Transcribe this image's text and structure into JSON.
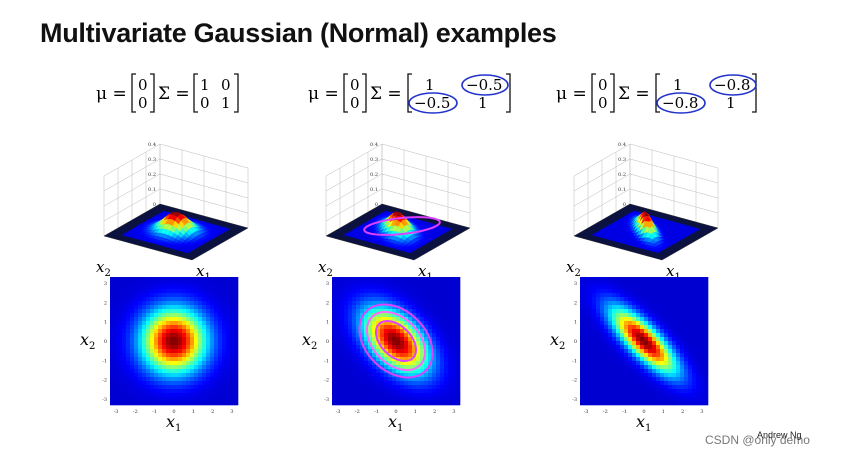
{
  "title": "Multivariate Gaussian (Normal) examples",
  "panels": [
    {
      "mu_symbol": "μ =",
      "mu": [
        "0",
        "0"
      ],
      "sigma_symbol": "Σ =",
      "sigma": [
        [
          "1",
          "0"
        ],
        [
          "0",
          "1"
        ]
      ],
      "circled_offdiag": false,
      "axis_x": "x",
      "axis_x_sub": "1",
      "axis_y": "x",
      "axis_y_sub": "2",
      "rho": 0.0
    },
    {
      "mu_symbol": "μ =",
      "mu": [
        "0",
        "0"
      ],
      "sigma_symbol": "Σ =",
      "sigma": [
        [
          "1",
          "−0.5"
        ],
        [
          "−0.5",
          "1"
        ]
      ],
      "circled_offdiag": true,
      "axis_x": "x",
      "axis_x_sub": "1",
      "axis_y": "x",
      "axis_y_sub": "2",
      "rho": -0.5
    },
    {
      "mu_symbol": "μ =",
      "mu": [
        "0",
        "0"
      ],
      "sigma_symbol": "Σ =",
      "sigma": [
        [
          "1",
          "−0.8"
        ],
        [
          "−0.8",
          "1"
        ]
      ],
      "circled_offdiag": true,
      "axis_x": "x",
      "axis_x_sub": "1",
      "axis_y": "x",
      "axis_y_sub": "2",
      "rho": -0.8
    }
  ],
  "credit": "Andrew Ng",
  "watermark": "CSDN @only demo",
  "colors": {
    "annotation": "#2233cc",
    "highlight": "#e040ff",
    "heat_bg": "#0a1a9a"
  }
}
